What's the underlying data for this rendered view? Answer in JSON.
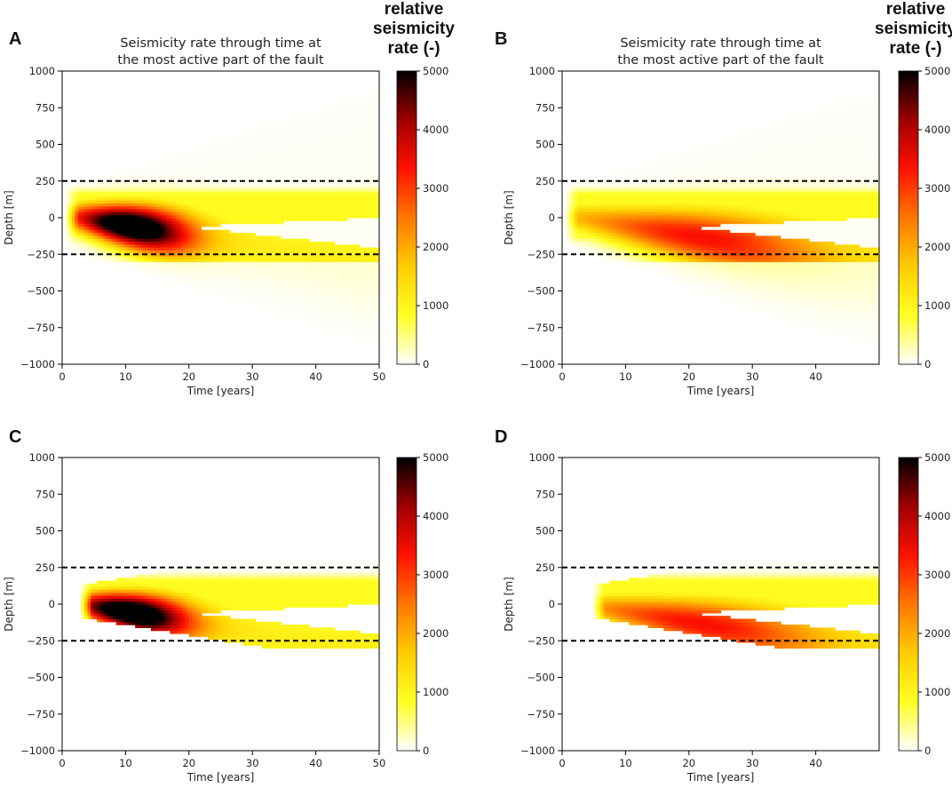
{
  "palette": {
    "cmap": [
      "#ffffff",
      "#ffff22",
      "#ffcc00",
      "#ff7700",
      "#ff1100",
      "#a00000",
      "#000000"
    ],
    "background": "#ffffff",
    "axis": "#000000",
    "dashed_line": "#000000"
  },
  "chart_data": [
    {
      "type": "heatmap",
      "panel": "A",
      "title_lines": [
        "Seismicity rate through time at",
        "the most active part of the fault"
      ],
      "xlabel": "Time [years]",
      "ylabel": "Depth [m]",
      "xlim": [
        0,
        50
      ],
      "ylim": [
        -1000,
        1000
      ],
      "xticks": [
        0,
        10,
        20,
        30,
        40,
        50
      ],
      "yticks": [
        -1000,
        -750,
        -500,
        -250,
        0,
        250,
        500,
        750,
        1000
      ],
      "dashed_lines_depth": [
        250,
        -250
      ],
      "colorbar": {
        "label_lines": [
          "relative",
          "seismicity",
          "rate (-)"
        ],
        "range": [
          0,
          5000
        ],
        "ticks": [
          0,
          1000,
          2000,
          3000,
          4000,
          5000
        ]
      },
      "model": {
        "t_start": 0.5,
        "peak_time": 11,
        "peak_value": 5000,
        "shadow": true,
        "diffuse_envelope": true,
        "t_end": 50
      }
    },
    {
      "type": "heatmap",
      "panel": "B",
      "title_lines": [
        "Seismicity rate through time at",
        "the most active part of the fault"
      ],
      "xlabel": "Time [years]",
      "ylabel": "Depth [m]",
      "xlim": [
        0,
        50
      ],
      "ylim": [
        -1000,
        1000
      ],
      "xticks": [
        0,
        10,
        20,
        30,
        40
      ],
      "yticks": [
        -1000,
        -750,
        -500,
        -250,
        0,
        250,
        500,
        750,
        1000
      ],
      "dashed_lines_depth": [
        250,
        -250
      ],
      "colorbar": {
        "label_lines": [
          "relative",
          "seismicity",
          "rate (-)"
        ],
        "range": [
          0,
          5000
        ],
        "ticks": [
          0,
          1000,
          2000,
          3000,
          4000,
          5000
        ]
      },
      "model": {
        "t_start": 0.5,
        "peak_time": 22,
        "peak_value": 2300,
        "shadow": true,
        "diffuse_envelope": true,
        "t_end": 50
      }
    },
    {
      "type": "heatmap",
      "panel": "C",
      "title_lines": [],
      "xlabel": "Time [years]",
      "ylabel": "Depth [m]",
      "xlim": [
        0,
        50
      ],
      "ylim": [
        -1000,
        1000
      ],
      "xticks": [
        0,
        10,
        20,
        30,
        40,
        50
      ],
      "yticks": [
        -1000,
        -750,
        -500,
        -250,
        0,
        250,
        500,
        750,
        1000
      ],
      "dashed_lines_depth": [
        250,
        -250
      ],
      "colorbar": {
        "label_lines": [],
        "range": [
          0,
          5000
        ],
        "ticks": [
          0,
          1000,
          2000,
          3000,
          4000,
          5000
        ]
      },
      "model": {
        "t_start": 2.8,
        "peak_time": 11,
        "peak_value": 5000,
        "shadow": true,
        "diffuse_envelope": false,
        "t_end": 50
      }
    },
    {
      "type": "heatmap",
      "panel": "D",
      "title_lines": [],
      "xlabel": "Time [years]",
      "ylabel": "Depth [m]",
      "xlim": [
        0,
        50
      ],
      "ylim": [
        -1000,
        1000
      ],
      "xticks": [
        0,
        10,
        20,
        30,
        40
      ],
      "yticks": [
        -1000,
        -750,
        -500,
        -250,
        0,
        250,
        500,
        750,
        1000
      ],
      "dashed_lines_depth": [
        250,
        -250
      ],
      "colorbar": {
        "label_lines": [],
        "range": [
          0,
          5000
        ],
        "ticks": [
          0,
          1000,
          2000,
          3000,
          4000,
          5000
        ]
      },
      "model": {
        "t_start": 4.8,
        "peak_time": 22,
        "peak_value": 2300,
        "shadow": true,
        "diffuse_envelope": false,
        "t_end": 50
      }
    }
  ]
}
